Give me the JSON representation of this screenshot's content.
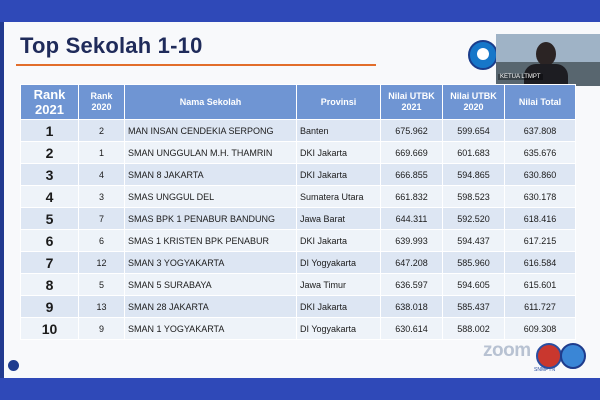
{
  "slide": {
    "title": "Top Sekolah 1-10",
    "presenter_caption": "KETUA LTMPT",
    "watermark": "zoom",
    "logo_caption": "SNMPTN"
  },
  "colors": {
    "frame_blue": "#2f49b8",
    "header_blue": "#6f95d3",
    "title_accent": "#e26e2b"
  },
  "table": {
    "headers": [
      "Rank 2021",
      "Rank 2020",
      "Nama Sekolah",
      "Provinsi",
      "Nilai UTBK 2021",
      "Nilai UTBK 2020",
      "Nilai Total"
    ],
    "rows": [
      {
        "rank2021": "1",
        "rank2020": "2",
        "school": "MAN INSAN CENDEKIA SERPONG",
        "province": "Banten",
        "utbk2021": "675.962",
        "utbk2020": "599.654",
        "total": "637.808"
      },
      {
        "rank2021": "2",
        "rank2020": "1",
        "school": "SMAN UNGGULAN M.H. THAMRIN",
        "province": "DKI Jakarta",
        "utbk2021": "669.669",
        "utbk2020": "601.683",
        "total": "635.676"
      },
      {
        "rank2021": "3",
        "rank2020": "4",
        "school": "SMAN 8 JAKARTA",
        "province": "DKI Jakarta",
        "utbk2021": "666.855",
        "utbk2020": "594.865",
        "total": "630.860"
      },
      {
        "rank2021": "4",
        "rank2020": "3",
        "school": "SMAS UNGGUL DEL",
        "province": "Sumatera Utara",
        "utbk2021": "661.832",
        "utbk2020": "598.523",
        "total": "630.178"
      },
      {
        "rank2021": "5",
        "rank2020": "7",
        "school": "SMAS BPK 1 PENABUR BANDUNG",
        "province": "Jawa Barat",
        "utbk2021": "644.311",
        "utbk2020": "592.520",
        "total": "618.416"
      },
      {
        "rank2021": "6",
        "rank2020": "6",
        "school": "SMAS 1 KRISTEN BPK PENABUR",
        "province": "DKI Jakarta",
        "utbk2021": "639.993",
        "utbk2020": "594.437",
        "total": "617.215"
      },
      {
        "rank2021": "7",
        "rank2020": "12",
        "school": "SMAN 3 YOGYAKARTA",
        "province": "DI Yogyakarta",
        "utbk2021": "647.208",
        "utbk2020": "585.960",
        "total": "616.584"
      },
      {
        "rank2021": "8",
        "rank2020": "5",
        "school": "SMAN 5 SURABAYA",
        "province": "Jawa Timur",
        "utbk2021": "636.597",
        "utbk2020": "594.605",
        "total": "615.601"
      },
      {
        "rank2021": "9",
        "rank2020": "13",
        "school": "SMAN 28 JAKARTA",
        "province": "DKI Jakarta",
        "utbk2021": "638.018",
        "utbk2020": "585.437",
        "total": "611.727"
      },
      {
        "rank2021": "10",
        "rank2020": "9",
        "school": "SMAN 1 YOGYAKARTA",
        "province": "DI Yogyakarta",
        "utbk2021": "630.614",
        "utbk2020": "588.002",
        "total": "609.308"
      }
    ]
  }
}
